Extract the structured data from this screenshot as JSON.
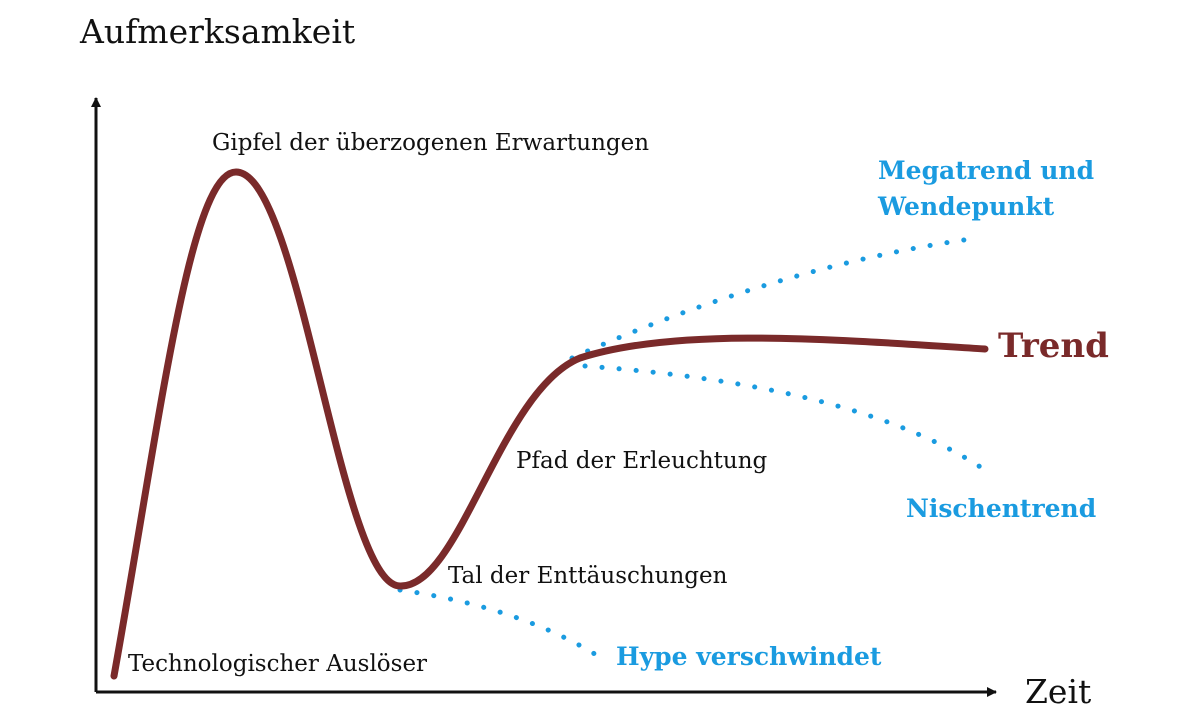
{
  "colors": {
    "curve": "#7a2a2a",
    "scenario": "#1a9be0",
    "text": "#111111",
    "axis": "#111111"
  },
  "axes": {
    "y_label": "Aufmerksamkeit",
    "x_label": "Zeit"
  },
  "phases": {
    "trigger": "Technologischer Auslöser",
    "peak": "Gipfel der überzogenen Erwartungen",
    "trough": "Tal der Enttäuschungen",
    "slope": "Pfad der Erleuchtung"
  },
  "outcomes": {
    "trend": "Trend",
    "megatrend_line1": "Megatrend und",
    "megatrend_line2": "Wendepunkt",
    "niche": "Nischentrend",
    "hype_gone": "Hype verschwindet"
  }
}
